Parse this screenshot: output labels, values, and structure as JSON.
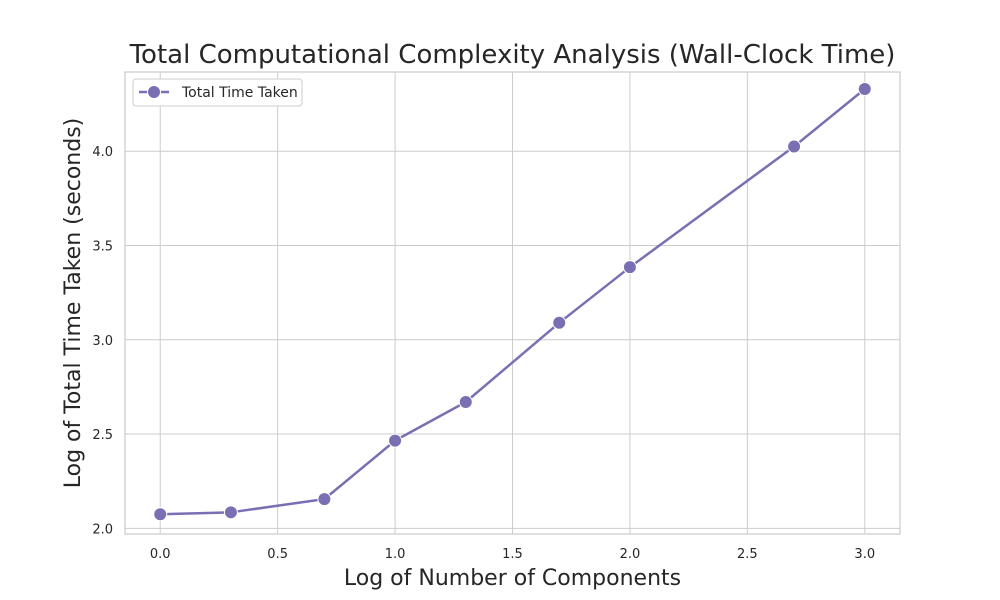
{
  "chart_data": {
    "type": "line",
    "title": "Total Computational Complexity Analysis (Wall-Clock Time)",
    "xlabel": "Log of Number of Components",
    "ylabel": "Log of Total Time Taken (seconds)",
    "xlim": [
      -0.15,
      3.15
    ],
    "ylim": [
      1.97,
      4.42
    ],
    "xticks": [
      0.0,
      0.5,
      1.0,
      1.5,
      2.0,
      2.5,
      3.0
    ],
    "xtick_labels": [
      "0.0",
      "0.5",
      "1.0",
      "1.5",
      "2.0",
      "2.5",
      "3.0"
    ],
    "yticks": [
      2.0,
      2.5,
      3.0,
      3.5,
      4.0
    ],
    "ytick_labels": [
      "2.0",
      "2.5",
      "3.0",
      "3.5",
      "4.0"
    ],
    "grid": true,
    "legend_position": "top-left",
    "series": [
      {
        "name": "Total Time Taken",
        "color": "#7b6fb3",
        "marker": "circle",
        "x": [
          0.0,
          0.301,
          0.699,
          1.0,
          1.301,
          1.699,
          2.0,
          2.699,
          3.0
        ],
        "y": [
          2.075,
          2.085,
          2.155,
          2.465,
          2.67,
          3.09,
          3.385,
          4.025,
          4.33
        ]
      }
    ]
  }
}
